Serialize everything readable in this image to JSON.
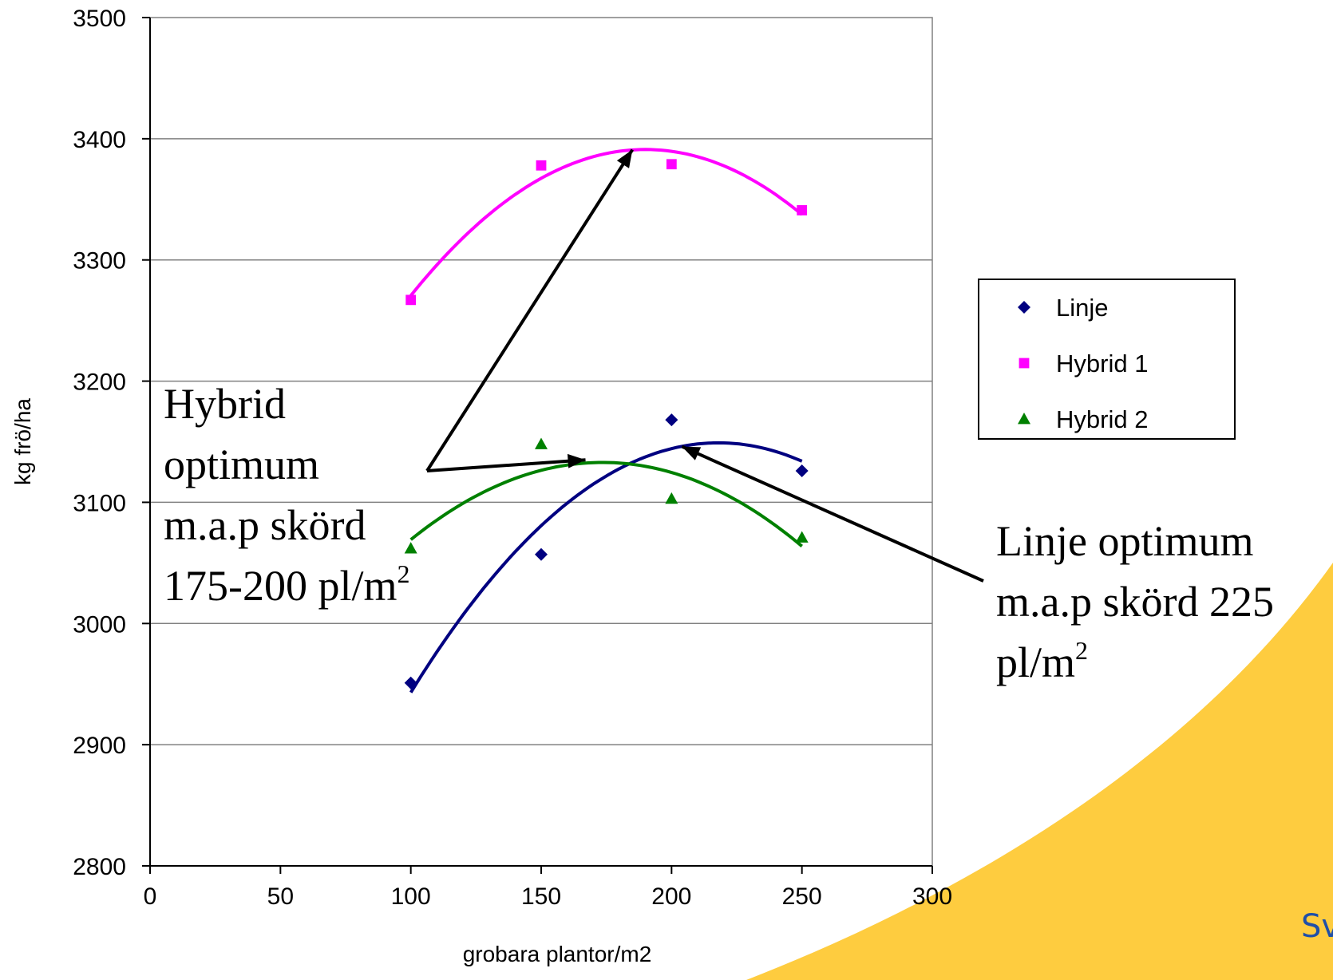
{
  "chart_data": {
    "type": "scatter",
    "xlabel": "grobara plantor/m2",
    "ylabel": "kg frö/ha",
    "xlim": [
      0,
      300
    ],
    "ylim": [
      2800,
      3500
    ],
    "xticks": [
      0,
      50,
      100,
      150,
      200,
      250,
      300
    ],
    "yticks": [
      2800,
      2900,
      3000,
      3100,
      3200,
      3300,
      3400,
      3500
    ],
    "grid": "horizontal",
    "legend_position": "right",
    "trendline": "polynomial-2",
    "series": [
      {
        "name": "Linje",
        "marker": "diamond",
        "color": "#000080",
        "x": [
          100,
          150,
          200,
          250
        ],
        "y": [
          2951,
          3057,
          3168,
          3126
        ]
      },
      {
        "name": "Hybrid 1",
        "marker": "square",
        "color": "#ff00ff",
        "x": [
          100,
          150,
          200,
          250
        ],
        "y": [
          3267,
          3378,
          3379,
          3341
        ]
      },
      {
        "name": "Hybrid 2",
        "marker": "triangle",
        "color": "#008000",
        "x": [
          100,
          150,
          200,
          250
        ],
        "y": [
          3062,
          3148,
          3103,
          3071
        ]
      }
    ],
    "annotations": [
      {
        "lines": [
          "Hybrid",
          "optimum",
          "m.a.p skörd",
          "175-200 pl/m"
        ],
        "superscript": "2"
      },
      {
        "lines": [
          "Linje optimum",
          "m.a.p skörd 225",
          "pl/m"
        ],
        "superscript": "2"
      }
    ]
  },
  "branding": {
    "text": "Sv",
    "color": "#1f4fa8",
    "swoosh_color": "#fecc3f"
  }
}
